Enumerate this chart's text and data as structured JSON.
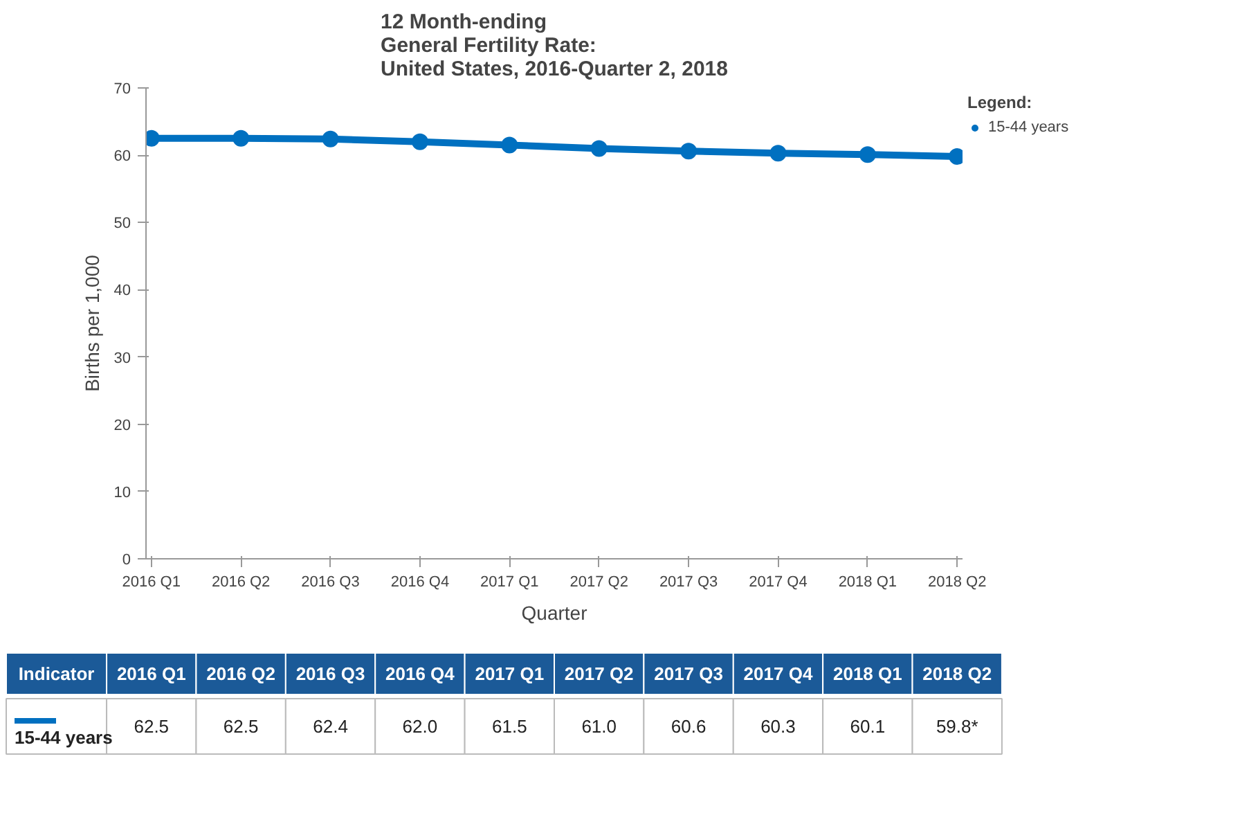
{
  "chart_data": {
    "type": "line",
    "title": "12 Month-ending\nGeneral Fertility Rate:\nUnited States, 2016-Quarter 2, 2018",
    "xlabel": "Quarter",
    "ylabel": "Births per 1,000",
    "legend_title": "Legend:",
    "legend": "top right",
    "marker": "circle",
    "grid": false,
    "data_labels": true,
    "categories": [
      "2016 Q1",
      "2016 Q2",
      "2016 Q3",
      "2016 Q4",
      "2017 Q1",
      "2017 Q2",
      "2017 Q3",
      "2017 Q4",
      "2018 Q1",
      "2018 Q2"
    ],
    "ylim": [
      0,
      70
    ],
    "yticks": [
      0,
      10,
      20,
      30,
      40,
      50,
      60,
      70
    ],
    "annotations": [
      "Indicator"
    ],
    "series": [
      {
        "name": "15-44 years",
        "color": "#0070c0",
        "values": [
          62.5,
          62.5,
          62.4,
          62.0,
          61.5,
          61.0,
          60.6,
          60.3,
          60.1,
          59.8
        ],
        "value_labels": [
          "62.5",
          "62.5",
          "62.4",
          "62.0",
          "61.5",
          "61.0",
          "60.6",
          "60.3",
          "60.1",
          "59.8*"
        ]
      }
    ]
  }
}
